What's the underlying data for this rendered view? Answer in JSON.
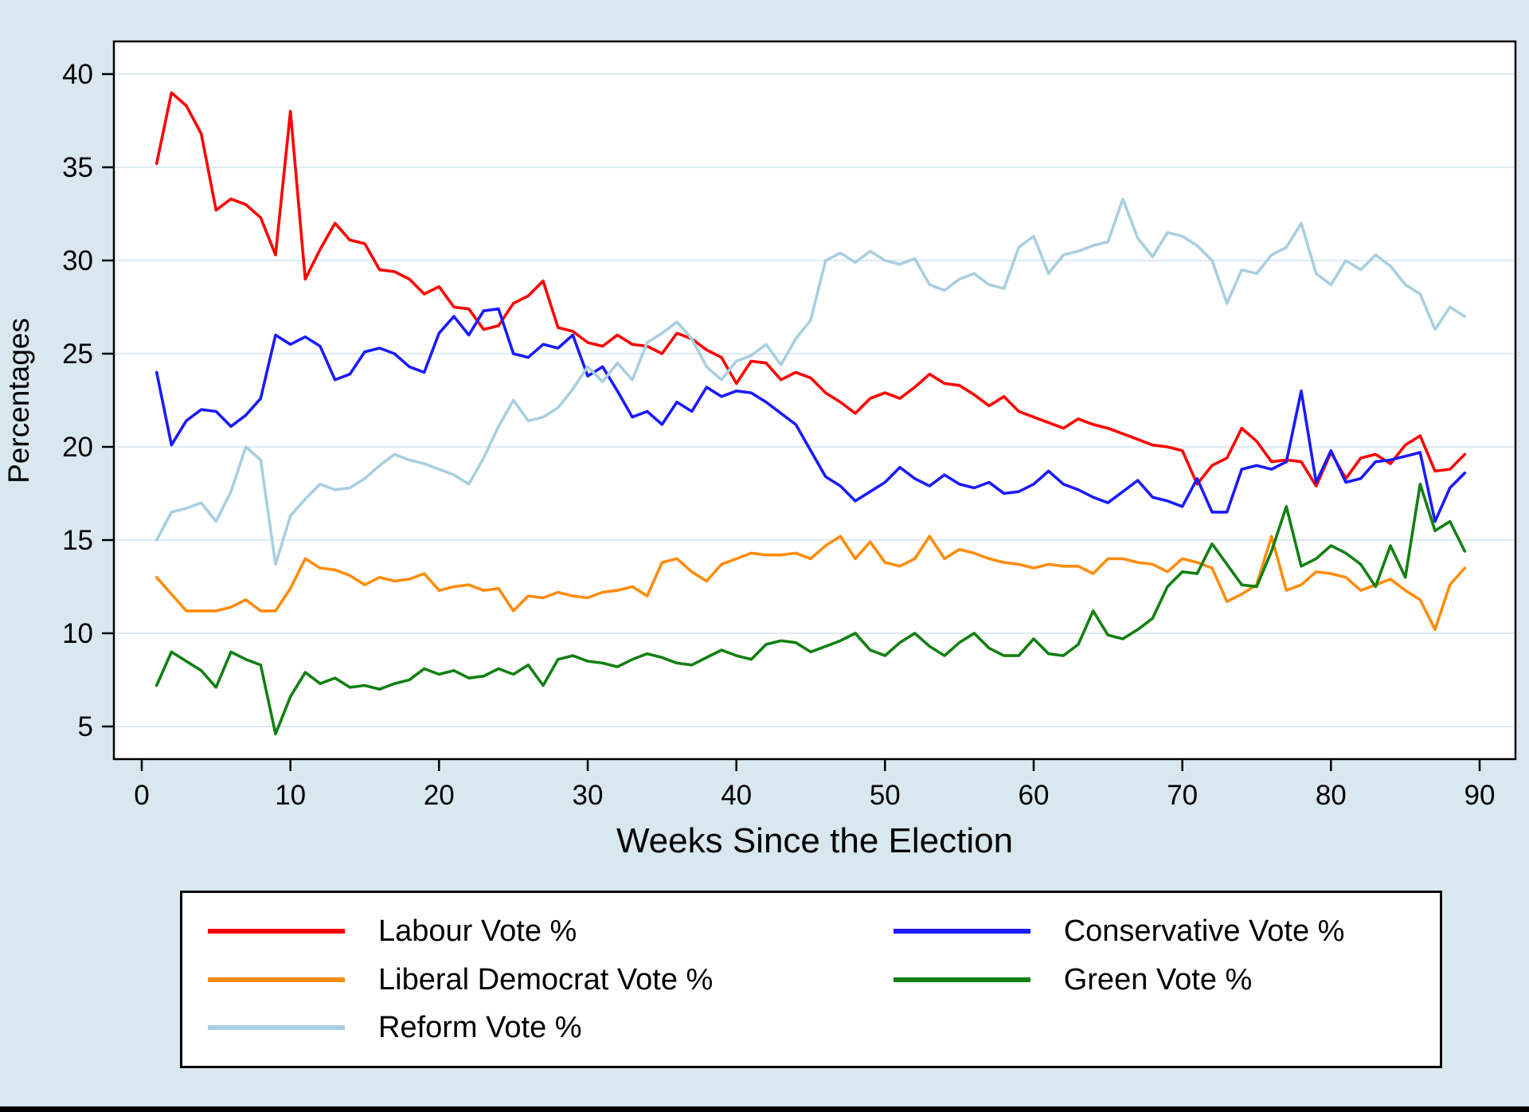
{
  "window": {
    "background": "#d9e8ef",
    "bottom_bar_color": "#000000"
  },
  "chart_data": {
    "type": "line",
    "title": "",
    "xlabel": "Weeks Since the Election",
    "ylabel": "Percentages",
    "x_ticks": [
      0,
      10,
      20,
      30,
      40,
      50,
      60,
      70,
      80,
      90
    ],
    "y_ticks": [
      5,
      10,
      15,
      20,
      25,
      30,
      35,
      40
    ],
    "xlim": [
      0,
      90
    ],
    "ylim": [
      5,
      40
    ],
    "grid": "horizontal",
    "legend_position": "bottom",
    "plot_background": "#ffffff",
    "grid_color": "#dfeaf0",
    "axis_color": "#000000",
    "x": [
      1,
      2,
      3,
      4,
      5,
      6,
      7,
      8,
      9,
      10,
      11,
      12,
      13,
      14,
      15,
      16,
      17,
      18,
      19,
      20,
      21,
      22,
      23,
      24,
      25,
      26,
      27,
      28,
      29,
      30,
      31,
      32,
      33,
      34,
      35,
      36,
      37,
      38,
      39,
      40,
      41,
      42,
      43,
      44,
      45,
      46,
      47,
      48,
      49,
      50,
      51,
      52,
      53,
      54,
      55,
      56,
      57,
      58,
      59,
      60,
      61,
      62,
      63,
      64,
      65,
      66,
      67,
      68,
      69,
      70,
      71,
      72,
      73,
      74,
      75,
      76,
      77,
      78,
      79,
      80,
      81,
      82,
      83,
      84,
      85,
      86,
      87,
      88,
      89
    ],
    "series": [
      {
        "name": "Labour Vote %",
        "color": "#fe0000",
        "values": [
          35.2,
          39,
          38.3,
          36.8,
          32.7,
          33.3,
          33,
          32.3,
          30.3,
          38,
          29,
          30.6,
          32,
          31.1,
          30.9,
          29.5,
          29.4,
          29,
          28.2,
          28.6,
          27.5,
          27.4,
          26.3,
          26.5,
          27.7,
          28.1,
          28.9,
          26.4,
          26.2,
          25.6,
          25.4,
          26,
          25.5,
          25.4,
          25,
          26.1,
          25.8,
          25.2,
          24.8,
          23.4,
          24.6,
          24.5,
          23.6,
          24,
          23.7,
          22.9,
          22.4,
          21.8,
          22.6,
          22.9,
          22.6,
          23.2,
          23.9,
          23.4,
          23.3,
          22.8,
          22.2,
          22.7,
          21.9,
          21.6,
          21.3,
          21,
          21.5,
          21.2,
          21,
          20.7,
          20.4,
          20.1,
          20,
          19.8,
          18,
          19,
          19.4,
          21,
          20.3,
          19.2,
          19.3,
          19.2,
          17.9,
          19.7,
          18.3,
          19.4,
          19.6,
          19.1,
          20.1,
          20.6,
          18.7,
          18.8,
          19.6
        ]
      },
      {
        "name": "Conservative Vote %",
        "color": "#1a1aff",
        "values": [
          24,
          20.1,
          21.4,
          22,
          21.9,
          21.1,
          21.7,
          22.6,
          26,
          25.5,
          25.9,
          25.4,
          23.6,
          23.9,
          25.1,
          25.3,
          25,
          24.3,
          24,
          26.1,
          27,
          26,
          27.3,
          27.4,
          25,
          24.8,
          25.5,
          25.3,
          26,
          23.8,
          24.3,
          23,
          21.6,
          21.9,
          21.2,
          22.4,
          21.9,
          23.2,
          22.7,
          23,
          22.9,
          22.4,
          21.8,
          21.2,
          19.8,
          18.4,
          17.9,
          17.1,
          17.6,
          18.1,
          18.9,
          18.3,
          17.9,
          18.5,
          18,
          17.8,
          18.1,
          17.5,
          17.6,
          18,
          18.7,
          18,
          17.7,
          17.3,
          17,
          17.6,
          18.2,
          17.3,
          17.1,
          16.8,
          18.3,
          16.5,
          16.5,
          18.8,
          19,
          18.8,
          19.2,
          23,
          18.1,
          19.8,
          18.1,
          18.3,
          19.2,
          19.3,
          19.5,
          19.7,
          16,
          17.8,
          18.6
        ]
      },
      {
        "name": "Liberal Democrat Vote %",
        "color": "#ff8c0a",
        "values": [
          13,
          12.1,
          11.2,
          11.2,
          11.2,
          11.4,
          11.8,
          11.2,
          11.2,
          12.4,
          14,
          13.5,
          13.4,
          13.1,
          12.6,
          13,
          12.8,
          12.9,
          13.2,
          12.3,
          12.5,
          12.6,
          12.3,
          12.4,
          11.2,
          12,
          11.9,
          12.2,
          12,
          11.9,
          12.2,
          12.3,
          12.5,
          12,
          13.8,
          14,
          13.3,
          12.8,
          13.7,
          14,
          14.3,
          14.2,
          14.2,
          14.3,
          14,
          14.7,
          15.2,
          14,
          14.9,
          13.8,
          13.6,
          14,
          15.2,
          14,
          14.5,
          14.3,
          14,
          13.8,
          13.7,
          13.5,
          13.7,
          13.6,
          13.6,
          13.2,
          14,
          14,
          13.8,
          13.7,
          13.3,
          14,
          13.8,
          13.5,
          11.7,
          12.1,
          12.6,
          15.2,
          12.3,
          12.6,
          13.3,
          13.2,
          13,
          12.3,
          12.6,
          12.9,
          12.3,
          11.8,
          10.2,
          12.6,
          13.5
        ]
      },
      {
        "name": "Green Vote %",
        "color": "#128012",
        "values": [
          7.2,
          9,
          8.5,
          8,
          7.1,
          9,
          8.6,
          8.3,
          4.6,
          6.6,
          7.9,
          7.3,
          7.6,
          7.1,
          7.2,
          7,
          7.3,
          7.5,
          8.1,
          7.8,
          8,
          7.6,
          7.7,
          8.1,
          7.8,
          8.3,
          7.2,
          8.6,
          8.8,
          8.5,
          8.4,
          8.2,
          8.6,
          8.9,
          8.7,
          8.4,
          8.3,
          8.7,
          9.1,
          8.8,
          8.6,
          9.4,
          9.6,
          9.5,
          9,
          9.3,
          9.6,
          10,
          9.1,
          8.8,
          9.5,
          10,
          9.3,
          8.8,
          9.5,
          10,
          9.2,
          8.8,
          8.8,
          9.7,
          8.9,
          8.8,
          9.4,
          11.2,
          9.9,
          9.7,
          10.2,
          10.8,
          12.5,
          13.3,
          13.2,
          14.8,
          13.7,
          12.6,
          12.5,
          14.4,
          16.8,
          13.6,
          14,
          14.7,
          14.3,
          13.7,
          12.5,
          14.7,
          13,
          18,
          15.5,
          16,
          14.4
        ]
      },
      {
        "name": "Reform Vote %",
        "color": "#a8cfe0",
        "values": [
          15,
          16.5,
          16.7,
          17,
          16,
          17.6,
          20,
          19.3,
          13.7,
          16.3,
          17.2,
          18,
          17.7,
          17.8,
          18.3,
          19,
          19.6,
          19.3,
          19.1,
          18.8,
          18.5,
          18,
          19.4,
          21.1,
          22.5,
          21.4,
          21.6,
          22.1,
          23.1,
          24.3,
          23.5,
          24.5,
          23.6,
          25.6,
          26.1,
          26.7,
          25.8,
          24.3,
          23.6,
          24.6,
          24.9,
          25.5,
          24.4,
          25.8,
          26.8,
          30,
          30.4,
          29.9,
          30.5,
          30,
          29.8,
          30.1,
          28.7,
          28.4,
          29,
          29.3,
          28.7,
          28.5,
          30.7,
          31.3,
          29.3,
          30.3,
          30.5,
          30.8,
          31,
          33.3,
          31.2,
          30.2,
          31.5,
          31.3,
          30.8,
          30,
          27.7,
          29.5,
          29.3,
          30.3,
          30.7,
          32,
          29.3,
          28.7,
          30,
          29.5,
          30.3,
          29.7,
          28.7,
          28.2,
          26.3,
          27.5,
          27
        ]
      }
    ]
  },
  "legend": {
    "entries": [
      {
        "label": "Labour Vote %",
        "color": "#fe0000"
      },
      {
        "label": "Conservative Vote %",
        "color": "#1a1aff"
      },
      {
        "label": "Liberal Democrat Vote %",
        "color": "#ff8c0a"
      },
      {
        "label": "Green Vote %",
        "color": "#128012"
      },
      {
        "label": "Reform Vote %",
        "color": "#a8cfe0"
      }
    ]
  }
}
